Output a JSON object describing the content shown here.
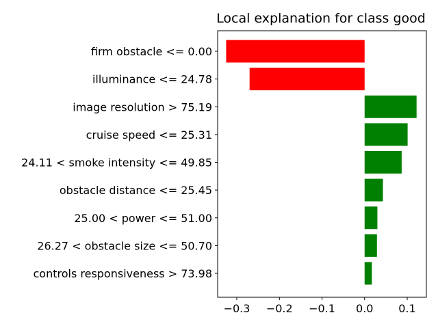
{
  "chart_data": {
    "type": "bar",
    "orientation": "horizontal",
    "title": "Local explanation for class good",
    "xlabel": "",
    "ylabel": "",
    "categories": [
      "firm obstacle <= 0.00",
      "illuminance <= 24.78",
      "image resolution > 75.19",
      "cruise speed <= 25.31",
      "24.11 < smoke intensity <= 49.85",
      "obstacle distance <= 25.45",
      "25.00 < power <= 51.00",
      "26.27 < obstacle size <= 50.70",
      "controls responsiveness > 73.98"
    ],
    "values": [
      -0.325,
      -0.27,
      0.122,
      0.101,
      0.087,
      0.043,
      0.03,
      0.029,
      0.017
    ],
    "colors": {
      "positive": "#008000",
      "negative": "#ff0000"
    },
    "xlim": [
      -0.345,
      0.145
    ],
    "xticks": [
      -0.3,
      -0.2,
      -0.1,
      0.0,
      0.1
    ],
    "xtick_labels": [
      "−0.3",
      "−0.2",
      "−0.1",
      "0.0",
      "0.1"
    ],
    "grid": false,
    "legend": "none"
  }
}
